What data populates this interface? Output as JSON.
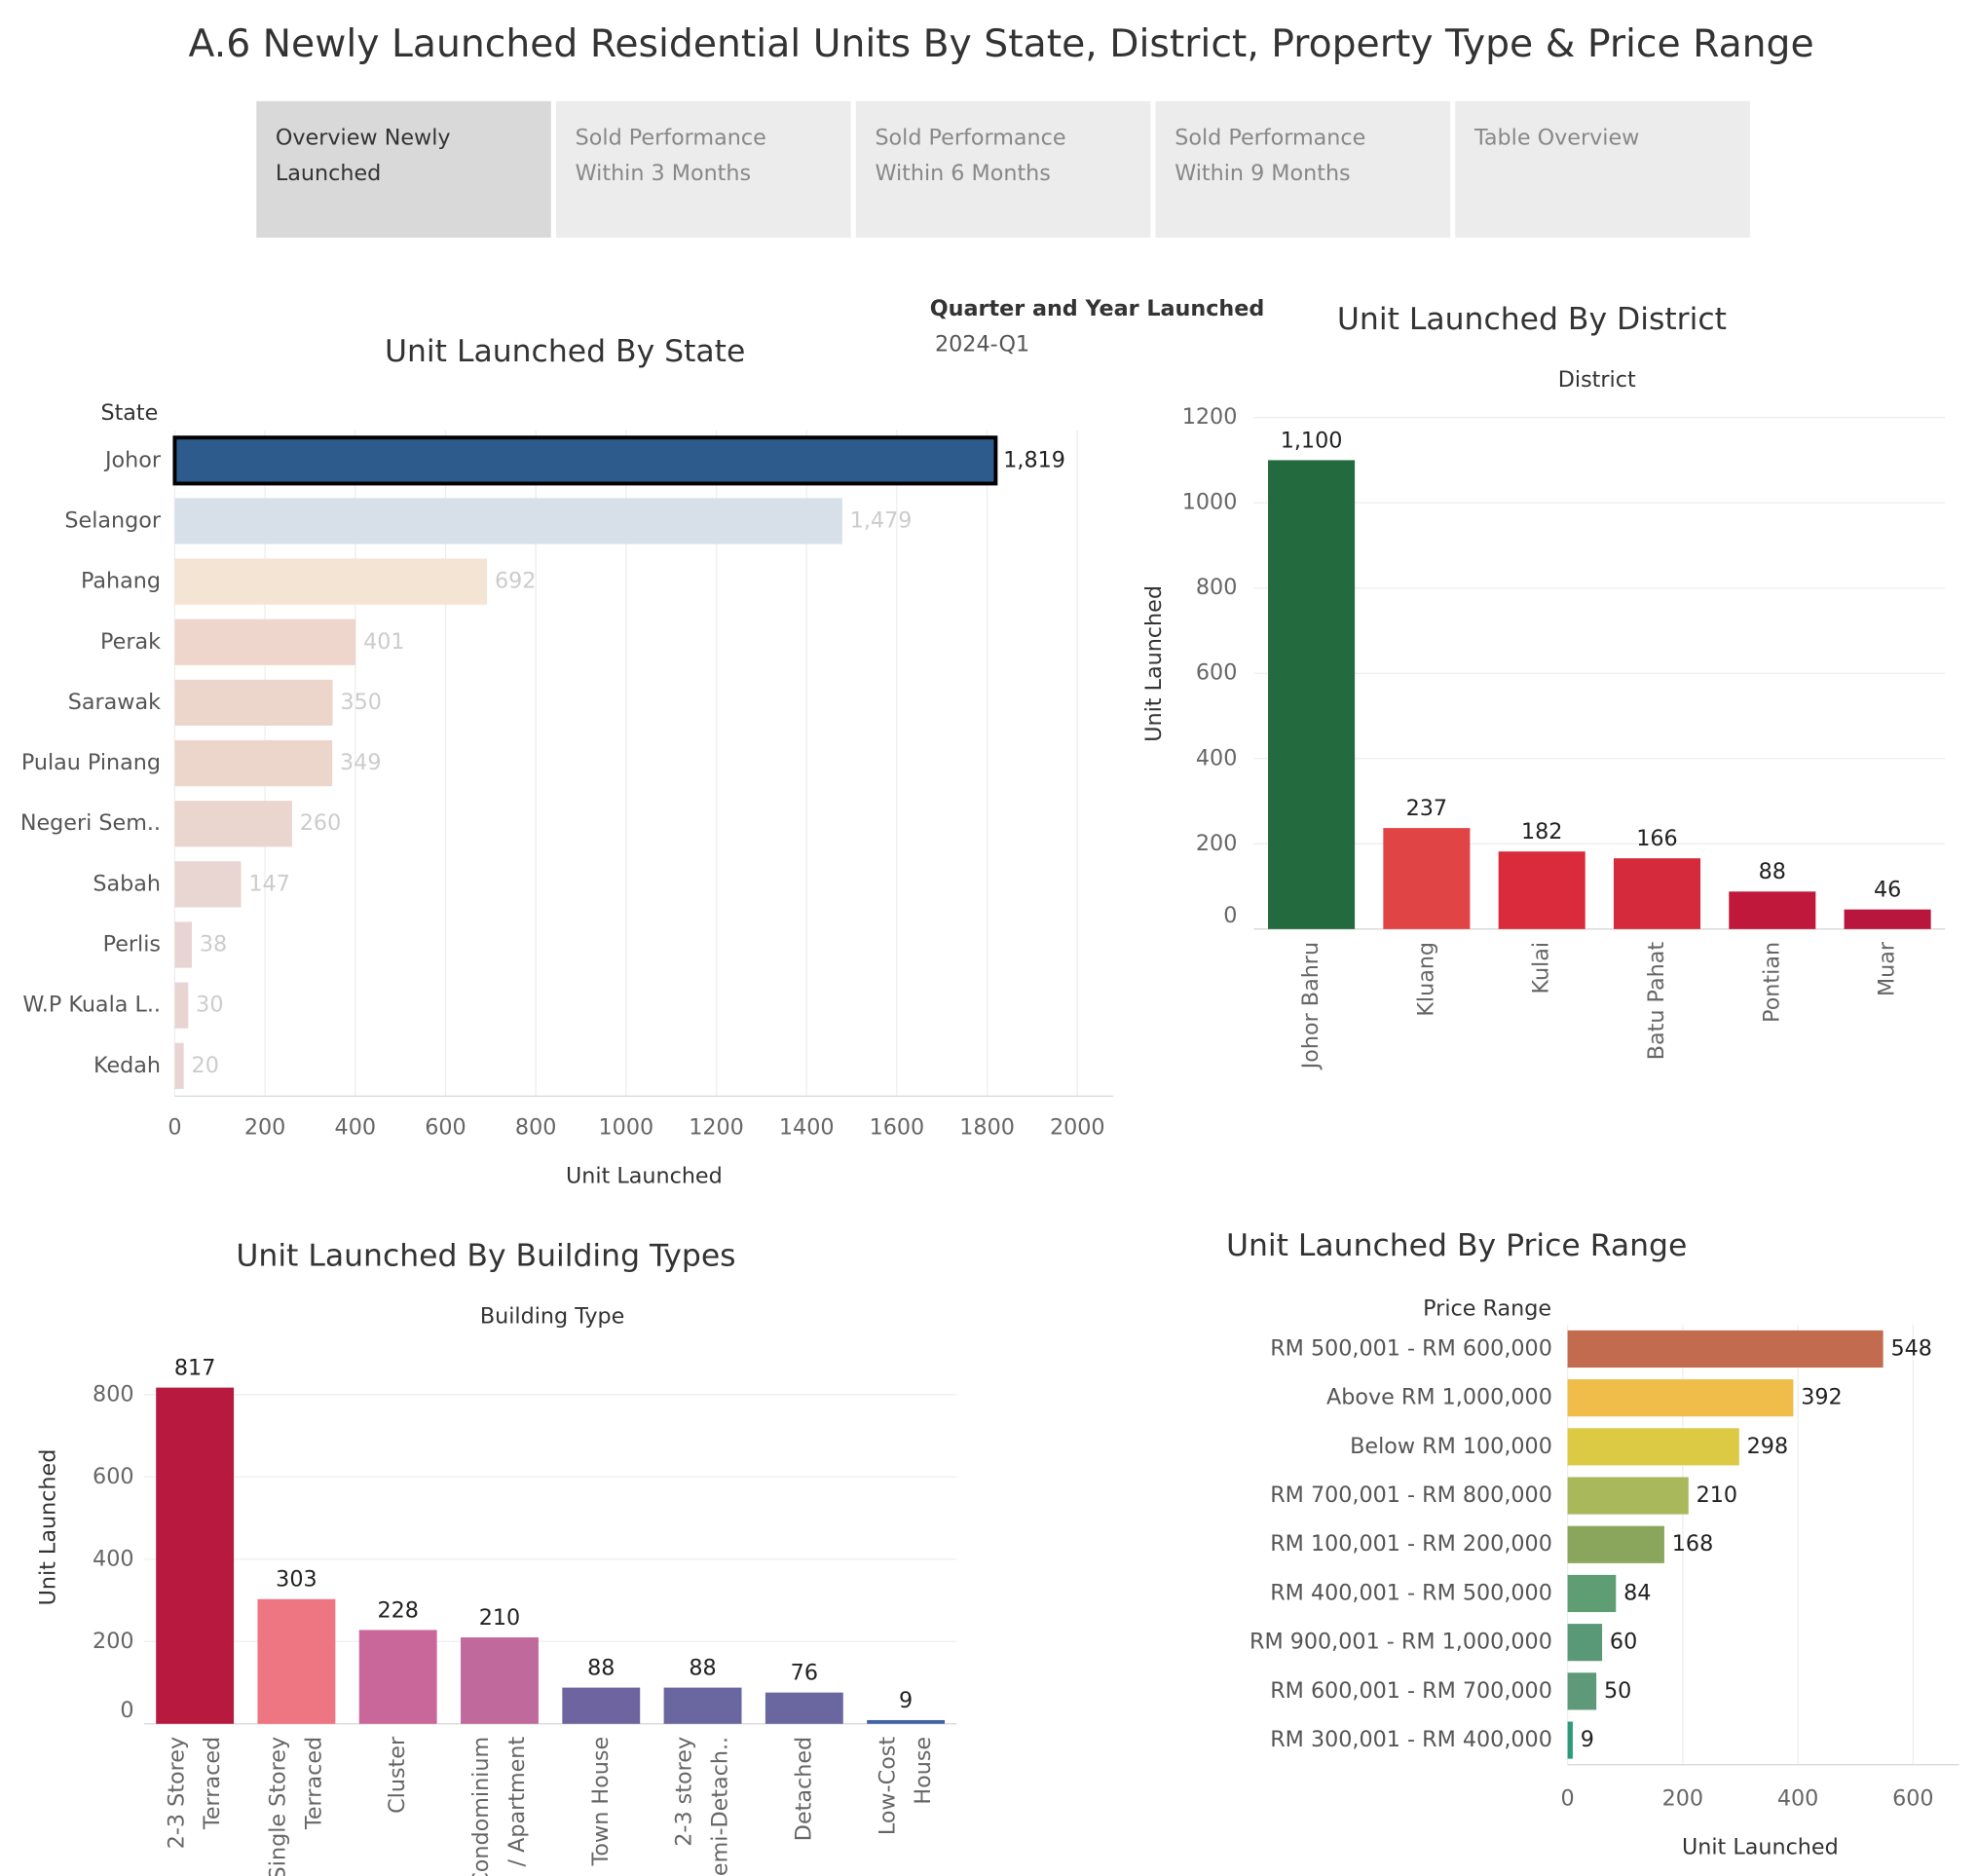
{
  "header": {
    "title": "A.6 Newly Launched Residential Units By State, District, Property Type & Price Range"
  },
  "tabs": [
    [
      "Overview Newly",
      "Launched"
    ],
    [
      "Sold Performance",
      "Within 3 Months"
    ],
    [
      "Sold Performance",
      "Within 6 Months"
    ],
    [
      "Sold Performance",
      "Within 9 Months"
    ],
    [
      "Table Overview"
    ]
  ],
  "filter": {
    "label": "Quarter and Year Launched",
    "value": "2024-Q1"
  },
  "chart_data": [
    {
      "type": "bar",
      "orientation": "horizontal",
      "title": "Unit Launched By State",
      "category_label": "State",
      "x_label": "Unit Launched",
      "categories": [
        "Johor",
        "Selangor",
        "Pahang",
        "Perak",
        "Sarawak",
        "Pulau Pinang",
        "Negeri Sem..",
        "Sabah",
        "Perlis",
        "W.P Kuala L..",
        "Kedah"
      ],
      "values": [
        1819,
        1479,
        692,
        401,
        350,
        349,
        260,
        147,
        38,
        30,
        20
      ],
      "value_labels": [
        "1,819",
        "1,479",
        "692",
        "401",
        "350",
        "349",
        "260",
        "147",
        "38",
        "30",
        "20"
      ],
      "colors": [
        "#2d5b8b",
        "#d7dfe8",
        "#f4e4d4",
        "#eed6cc",
        "#ecd6cc",
        "#ecd6cc",
        "#ead5cf",
        "#e9d6d2",
        "#e8d5d3",
        "#e8d5d3",
        "#e8d5d3"
      ],
      "outline_colors": [
        "#000000",
        "none",
        "none",
        "none",
        "none",
        "none",
        "none",
        "none",
        "none",
        "none",
        "none"
      ],
      "label_colors": [
        "#222222",
        "#cccccc",
        "#cccccc",
        "#cccccc",
        "#cccccc",
        "#cccccc",
        "#cccccc",
        "#cccccc",
        "#cccccc",
        "#cccccc",
        "#cccccc"
      ],
      "xlim": [
        0,
        2080
      ],
      "xticks": [
        0,
        200,
        400,
        600,
        800,
        1000,
        1200,
        1400,
        1600,
        1800,
        2000
      ],
      "grid": true
    },
    {
      "type": "bar",
      "orientation": "vertical",
      "title": "Unit Launched By District",
      "category_label": "District",
      "y_label": "Unit Launched",
      "categories": [
        "Johor Bahru",
        "Kluang",
        "Kulai",
        "Batu Pahat",
        "Pontian",
        "Muar"
      ],
      "values": [
        1100,
        237,
        182,
        166,
        88,
        46
      ],
      "value_labels": [
        "1,100",
        "237",
        "182",
        "166",
        "88",
        "46"
      ],
      "colors": [
        "#236a3e",
        "#e04445",
        "#d92b3c",
        "#d42a3b",
        "#c0183a",
        "#b8163c"
      ],
      "ylim": [
        0,
        1215
      ],
      "yticks": [
        0,
        200,
        400,
        600,
        800,
        1000,
        1200
      ],
      "grid": true
    },
    {
      "type": "bar",
      "orientation": "vertical",
      "title": "Unit Launched By Building Types",
      "category_label": "Building Type",
      "y_label": "Unit Launched",
      "categories": [
        [
          "2-3 Storey",
          "Terraced"
        ],
        [
          "Single Storey",
          "Terraced"
        ],
        [
          "Cluster"
        ],
        [
          "Condominium",
          "/ Apartment"
        ],
        [
          "Town House"
        ],
        [
          "2-3 storey",
          "Semi-Detach.."
        ],
        [
          "Detached"
        ],
        [
          "Low-Cost",
          "House"
        ]
      ],
      "values": [
        817,
        303,
        228,
        210,
        88,
        88,
        76,
        9
      ],
      "colors": [
        "#b8193f",
        "#ee7582",
        "#c9679a",
        "#c0699d",
        "#6d64a0",
        "#6a66a0",
        "#6a669f",
        "#3f64a6"
      ],
      "ylim": [
        0,
        930
      ],
      "yticks": [
        0,
        200,
        400,
        600,
        800
      ],
      "grid": true
    },
    {
      "type": "bar",
      "orientation": "horizontal",
      "title": "Unit Launched By Price Range",
      "category_label": "Price Range",
      "x_label": "Unit Launched",
      "categories": [
        "RM 500,001 - RM 600,000",
        "Above RM 1,000,000",
        "Below RM 100,000",
        "RM 700,001 - RM 800,000",
        "RM 100,001 - RM 200,000",
        "RM 400,001 - RM 500,000",
        "RM 900,001 - RM 1,000,000",
        "RM 600,001 - RM 700,000",
        "RM 300,001 - RM 400,000"
      ],
      "values": [
        548,
        392,
        298,
        210,
        168,
        84,
        60,
        50,
        9
      ],
      "colors": [
        "#c26b4e",
        "#f0bd4a",
        "#dcca45",
        "#a9b85a",
        "#8aa65c",
        "#5f9e73",
        "#5a9978",
        "#5e9a79",
        "#2e9a7b"
      ],
      "xlim": [
        0,
        680
      ],
      "xticks": [
        0,
        200,
        400,
        600
      ],
      "grid": true
    }
  ]
}
